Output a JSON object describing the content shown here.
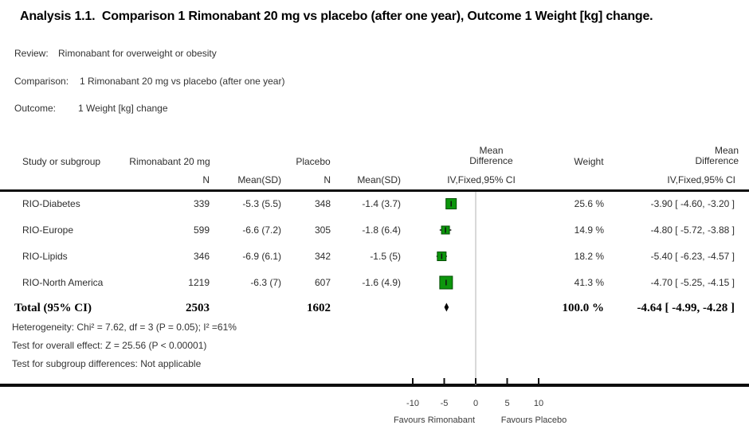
{
  "title": "Analysis 1.1.  Comparison 1 Rimonabant 20 mg vs placebo (after one year), Outcome 1 Weight [kg] change.",
  "meta": {
    "review_label": "Review:",
    "review_value": "Rimonabant for overweight or obesity",
    "comparison_label": "Comparison:",
    "comparison_value": "1 Rimonabant 20 mg vs placebo (after one year)",
    "outcome_label": "Outcome:",
    "outcome_value": "1 Weight [kg] change"
  },
  "table": {
    "headers": {
      "study": "Study or subgroup",
      "group1": "Rimonabant 20 mg",
      "group2": "Placebo",
      "n1": "N",
      "mean_sd1": "Mean(SD)",
      "n2": "N",
      "mean_sd2": "Mean(SD)",
      "md_plot_line1": "Mean",
      "md_plot_line2": "Difference",
      "md_plot_method": "IV,Fixed,95% CI",
      "weight": "Weight",
      "md_text_line1": "Mean",
      "md_text_line2": "Difference",
      "md_text_method": "IV,Fixed,95% CI"
    },
    "rows": [
      {
        "study": "RIO-Diabetes",
        "n1": "339",
        "mean_sd1": "-5.3 (5.5)",
        "n2": "348",
        "mean_sd2": "-1.4 (3.7)",
        "weight": "25.6 %",
        "md": "-3.90 [ -4.60, -3.20 ]"
      },
      {
        "study": "RIO-Europe",
        "n1": "599",
        "mean_sd1": "-6.6 (7.2)",
        "n2": "305",
        "mean_sd2": "-1.8 (6.4)",
        "weight": "14.9 %",
        "md": "-4.80 [ -5.72, -3.88 ]"
      },
      {
        "study": "RIO-Lipids",
        "n1": "346",
        "mean_sd1": "-6.9 (6.1)",
        "n2": "342",
        "mean_sd2": "-1.5 (5)",
        "weight": "18.2 %",
        "md": "-5.40 [ -6.23, -4.57 ]"
      },
      {
        "study": "RIO-North America",
        "n1": "1219",
        "mean_sd1": "-6.3 (7)",
        "n2": "607",
        "mean_sd2": "-1.6 (4.9)",
        "weight": "41.3 %",
        "md": "-4.70 [ -5.25, -4.15 ]"
      }
    ],
    "total": {
      "label": "Total (95% CI)",
      "n1": "2503",
      "n2": "1602",
      "weight": "100.0 %",
      "md": "-4.64 [ -4.99, -4.28 ]"
    },
    "footnotes": [
      "Heterogeneity: Chi² = 7.62, df = 3 (P = 0.05); I² =61%",
      "Test for overall effect: Z = 25.56 (P < 0.00001)",
      "Test for subgroup differences: Not applicable"
    ]
  },
  "chart_data": {
    "type": "forest",
    "effect_measure": "Mean Difference, IV, Fixed, 95% CI (Weight [kg] change)",
    "studies": [
      {
        "name": "RIO-Diabetes",
        "md": -3.9,
        "ci": [
          -4.6,
          -3.2
        ],
        "weight_pct": 25.6
      },
      {
        "name": "RIO-Europe",
        "md": -4.8,
        "ci": [
          -5.72,
          -3.88
        ],
        "weight_pct": 14.9
      },
      {
        "name": "RIO-Lipids",
        "md": -5.4,
        "ci": [
          -6.23,
          -4.57
        ],
        "weight_pct": 18.2
      },
      {
        "name": "RIO-North America",
        "md": -4.7,
        "ci": [
          -5.25,
          -4.15
        ],
        "weight_pct": 41.3
      }
    ],
    "total": {
      "md": -4.64,
      "ci": [
        -4.99,
        -4.28
      ],
      "weight_pct": 100.0
    },
    "axis": {
      "ticks": [
        -10,
        -5,
        0,
        5,
        10
      ],
      "zero_line": 0,
      "xlim": [
        -12.5,
        12.5
      ]
    },
    "favours_left": "Favours Rimonabant",
    "favours_right": "Favours Placebo",
    "marker_color": "#0c960c",
    "marker_border_color": "#044d04",
    "line_color": "#111111",
    "zero_line_color": "#b3b3b3"
  }
}
